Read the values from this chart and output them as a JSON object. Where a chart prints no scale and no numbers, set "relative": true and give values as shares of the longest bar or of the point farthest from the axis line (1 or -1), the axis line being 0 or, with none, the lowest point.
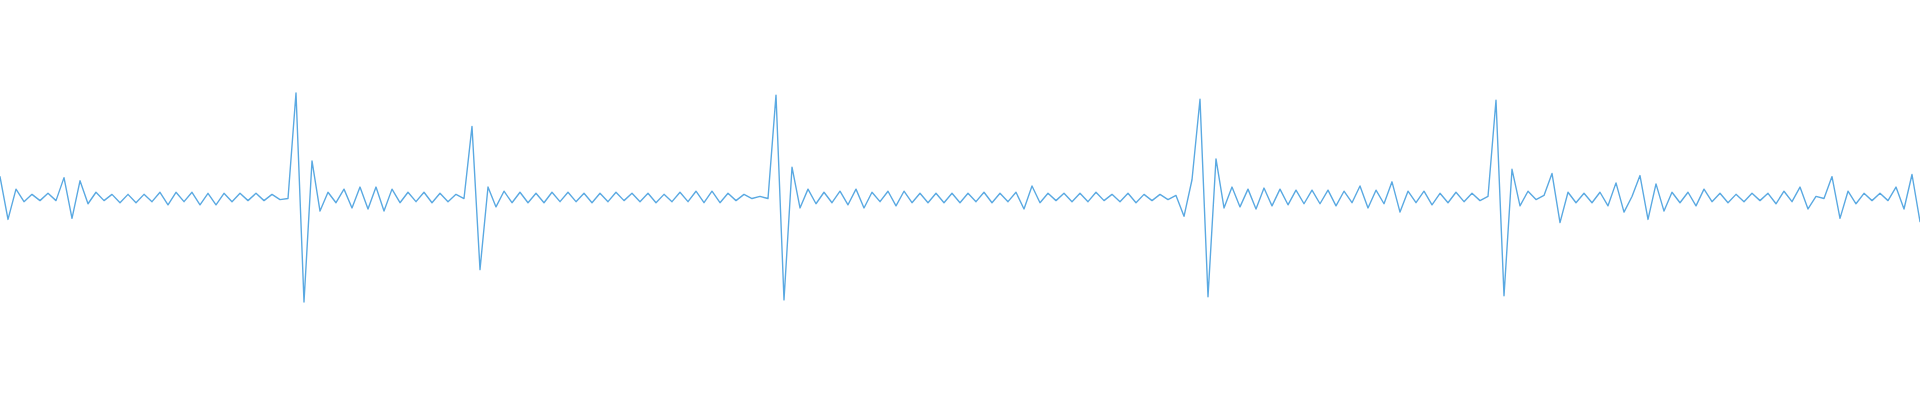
{
  "chart_data": {
    "type": "line",
    "relative": true,
    "color": "#5aa9e2",
    "categories": [
      null,
      null,
      null,
      null,
      null,
      null,
      null,
      null,
      null,
      null,
      null,
      null,
      null,
      null,
      null,
      null,
      null,
      null,
      null,
      null,
      null,
      null,
      null,
      null,
      null,
      null,
      null,
      null,
      null,
      null,
      null,
      null,
      null,
      null,
      null,
      null,
      null,
      null,
      null,
      null,
      null,
      null,
      null,
      null,
      null,
      null,
      null,
      null,
      null,
      null,
      null,
      null,
      null,
      null,
      null,
      null,
      null,
      null,
      null,
      null,
      null,
      null,
      null,
      null,
      null,
      null,
      null,
      null,
      null,
      null,
      null,
      null,
      null,
      null,
      null,
      null,
      null,
      null,
      null,
      null,
      null,
      null,
      null,
      null,
      null,
      null,
      null,
      null,
      null,
      null,
      null,
      null,
      null,
      null,
      null,
      null,
      null,
      null,
      null,
      null,
      null,
      null,
      null,
      null,
      null,
      null,
      null,
      null,
      null,
      null,
      null,
      null,
      null,
      null,
      null,
      null,
      null,
      null,
      null,
      null,
      null,
      null,
      null,
      null,
      null,
      null,
      null,
      null,
      null,
      null,
      null,
      null,
      null,
      null,
      null,
      null,
      null,
      null,
      null,
      null,
      null,
      null,
      null,
      null,
      null,
      null,
      null,
      null,
      null,
      null,
      null,
      null,
      null,
      null,
      null,
      null,
      null,
      null,
      null,
      null,
      null,
      null,
      null,
      null,
      null,
      null,
      null,
      null,
      null,
      null,
      null,
      null,
      null,
      null,
      null,
      null,
      null,
      null,
      null,
      null,
      null,
      null,
      null,
      null,
      null,
      null,
      null,
      null,
      null,
      null,
      null,
      null,
      null,
      null,
      null,
      null,
      null,
      null,
      null,
      null,
      null,
      null,
      null,
      null,
      null,
      null,
      null,
      null,
      null,
      null,
      null,
      null,
      null,
      null,
      null,
      null,
      null,
      null,
      null,
      null,
      null,
      null,
      null,
      null,
      null,
      null,
      null,
      null,
      null,
      null,
      null,
      null,
      null,
      null,
      null,
      null,
      null,
      null,
      null,
      null,
      null
    ],
    "values": [
      0.6,
      0.395,
      0.54,
      0.48,
      0.515,
      0.485,
      0.52,
      0.485,
      0.595,
      0.4,
      0.58,
      0.47,
      0.525,
      0.485,
      0.515,
      0.475,
      0.515,
      0.475,
      0.515,
      0.48,
      0.525,
      0.465,
      0.525,
      0.48,
      0.525,
      0.465,
      0.52,
      0.465,
      0.52,
      0.48,
      0.52,
      0.485,
      0.52,
      0.485,
      0.515,
      0.49,
      0.495,
      1.0,
      0,
      0.675,
      0.435,
      0.525,
      0.475,
      0.54,
      0.45,
      0.55,
      0.445,
      0.55,
      0.435,
      0.54,
      0.475,
      0.525,
      0.48,
      0.525,
      0.475,
      0.52,
      0.48,
      0.515,
      0.495,
      0.84,
      0.155,
      0.55,
      0.455,
      0.53,
      0.475,
      0.525,
      0.475,
      0.52,
      0.475,
      0.525,
      0.48,
      0.525,
      0.48,
      0.52,
      0.475,
      0.52,
      0.48,
      0.525,
      0.485,
      0.52,
      0.48,
      0.52,
      0.475,
      0.515,
      0.48,
      0.525,
      0.48,
      0.53,
      0.475,
      0.53,
      0.475,
      0.52,
      0.485,
      0.515,
      0.495,
      0.505,
      0.495,
      0.99,
      0.01,
      0.645,
      0.45,
      0.54,
      0.47,
      0.525,
      0.475,
      0.53,
      0.465,
      0.54,
      0.45,
      0.525,
      0.48,
      0.53,
      0.46,
      0.53,
      0.475,
      0.52,
      0.475,
      0.52,
      0.475,
      0.52,
      0.475,
      0.52,
      0.48,
      0.525,
      0.475,
      0.52,
      0.48,
      0.525,
      0.445,
      0.555,
      0.475,
      0.52,
      0.485,
      0.52,
      0.48,
      0.52,
      0.48,
      0.525,
      0.485,
      0.515,
      0.48,
      0.52,
      0.475,
      0.515,
      0.485,
      0.515,
      0.49,
      0.51,
      0.41,
      0.585,
      0.97,
      0.025,
      0.685,
      0.45,
      0.55,
      0.455,
      0.54,
      0.445,
      0.545,
      0.46,
      0.54,
      0.465,
      0.535,
      0.47,
      0.535,
      0.47,
      0.535,
      0.46,
      0.53,
      0.475,
      0.555,
      0.45,
      0.535,
      0.47,
      0.575,
      0.43,
      0.53,
      0.475,
      0.53,
      0.465,
      0.52,
      0.475,
      0.525,
      0.48,
      0.52,
      0.485,
      0.505,
      0.965,
      0.03,
      0.635,
      0.46,
      0.53,
      0.49,
      0.51,
      0.615,
      0.38,
      0.525,
      0.475,
      0.52,
      0.475,
      0.525,
      0.46,
      0.57,
      0.43,
      0.505,
      0.605,
      0.395,
      0.565,
      0.435,
      0.525,
      0.475,
      0.525,
      0.46,
      0.54,
      0.48,
      0.52,
      0.475,
      0.515,
      0.48,
      0.52,
      0.485,
      0.52,
      0.47,
      0.53,
      0.48,
      0.55,
      0.445,
      0.505,
      0.495,
      0.6,
      0.4,
      0.53,
      0.47,
      0.52,
      0.485,
      0.52,
      0.485,
      0.55,
      0.445,
      0.61,
      0.385
    ]
  }
}
